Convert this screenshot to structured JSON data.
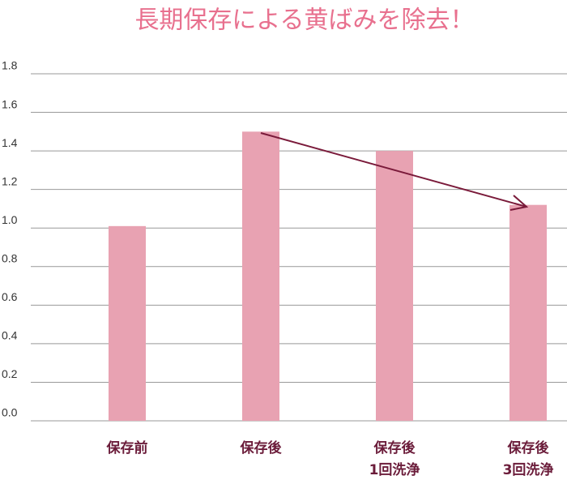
{
  "chart_data": {
    "type": "bar",
    "title": "長期保存による黄ばみを除去！",
    "categories": [
      [
        "保存前"
      ],
      [
        "保存後"
      ],
      [
        "保存後",
        "1回洗浄"
      ],
      [
        "保存後",
        "3回洗浄"
      ]
    ],
    "values": [
      1.01,
      1.5,
      1.4,
      1.12
    ],
    "color": "#e8a2b2",
    "ylim": [
      0,
      1.8
    ],
    "yticks": [
      {
        "value": 0,
        "label": "0.0"
      },
      0.2,
      0.4,
      0.6,
      0.8,
      {
        "value": 1,
        "label": "1.0"
      },
      1.2,
      1.4,
      1.6,
      1.8
    ],
    "grid": true
  }
}
